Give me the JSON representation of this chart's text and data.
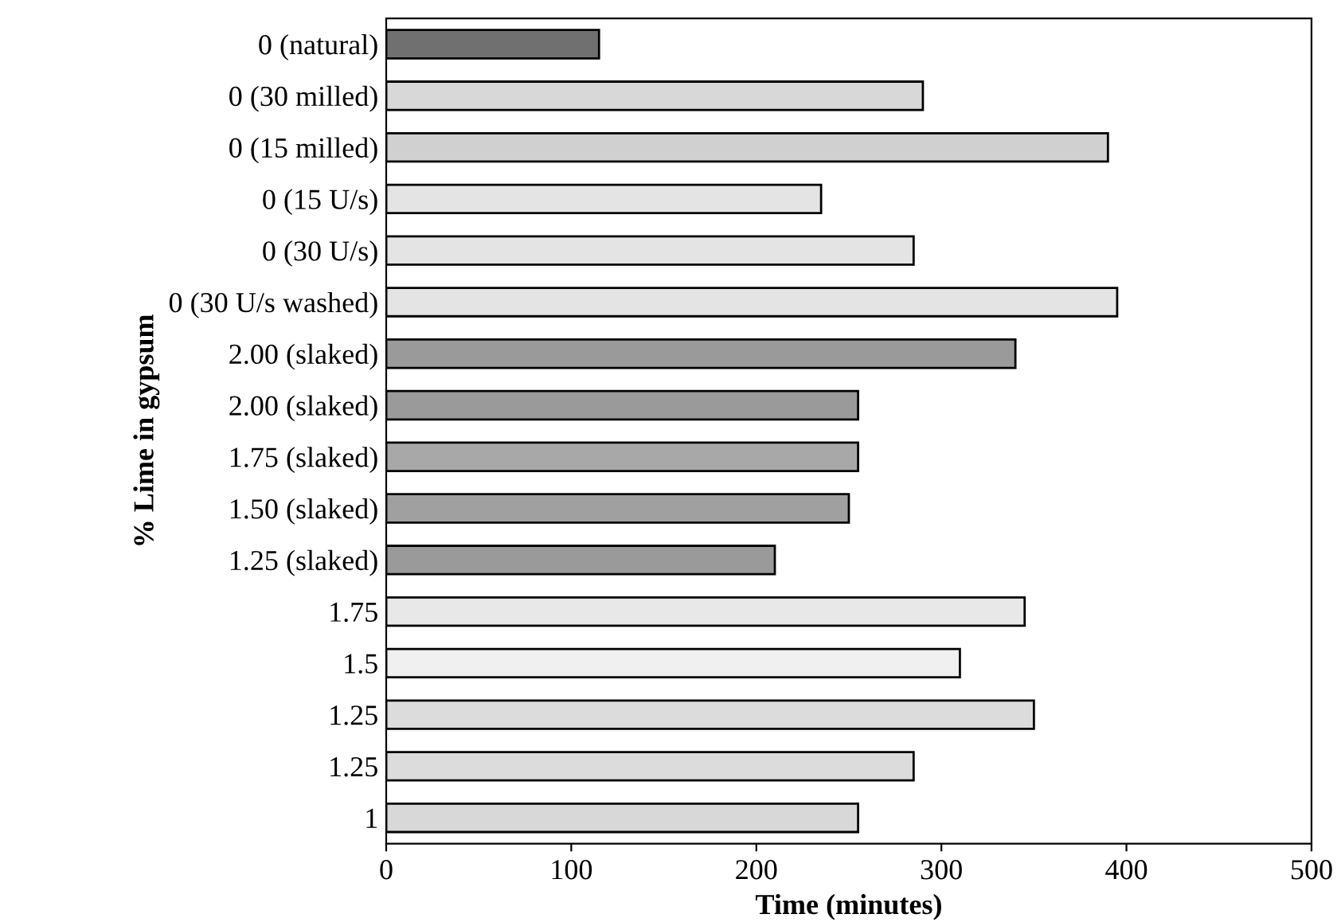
{
  "chart_data": {
    "type": "bar",
    "orientation": "horizontal",
    "xlabel": "Time (minutes)",
    "ylabel": "% Lime in gypsum",
    "categories": [
      "0 (natural)",
      "0 (30 milled)",
      "0 (15 milled)",
      "0 (15 U/s)",
      "0 (30 U/s)",
      "0 (30 U/s washed)",
      "2.00 (slaked)",
      "2.00 (slaked)",
      "1.75 (slaked)",
      "1.50 (slaked)",
      "1.25 (slaked)",
      "1.75",
      "1.5",
      "1.25",
      "1.25",
      "1"
    ],
    "values": [
      115,
      290,
      390,
      235,
      285,
      395,
      340,
      255,
      255,
      250,
      210,
      345,
      310,
      350,
      285,
      255
    ],
    "colors": [
      "#707070",
      "#d8d8d8",
      "#d0d0d0",
      "#e4e4e4",
      "#e4e4e4",
      "#e4e4e4",
      "#9a9a9a",
      "#9a9a9a",
      "#a8a8a8",
      "#a0a0a0",
      "#9a9a9a",
      "#e8e8e8",
      "#f0f0f0",
      "#dcdcdc",
      "#dcdcdc",
      "#d8d8d8"
    ],
    "xlim": [
      0,
      500
    ],
    "xticks": [
      0,
      100,
      200,
      300,
      400,
      500
    ],
    "grid": false,
    "legend": false
  }
}
